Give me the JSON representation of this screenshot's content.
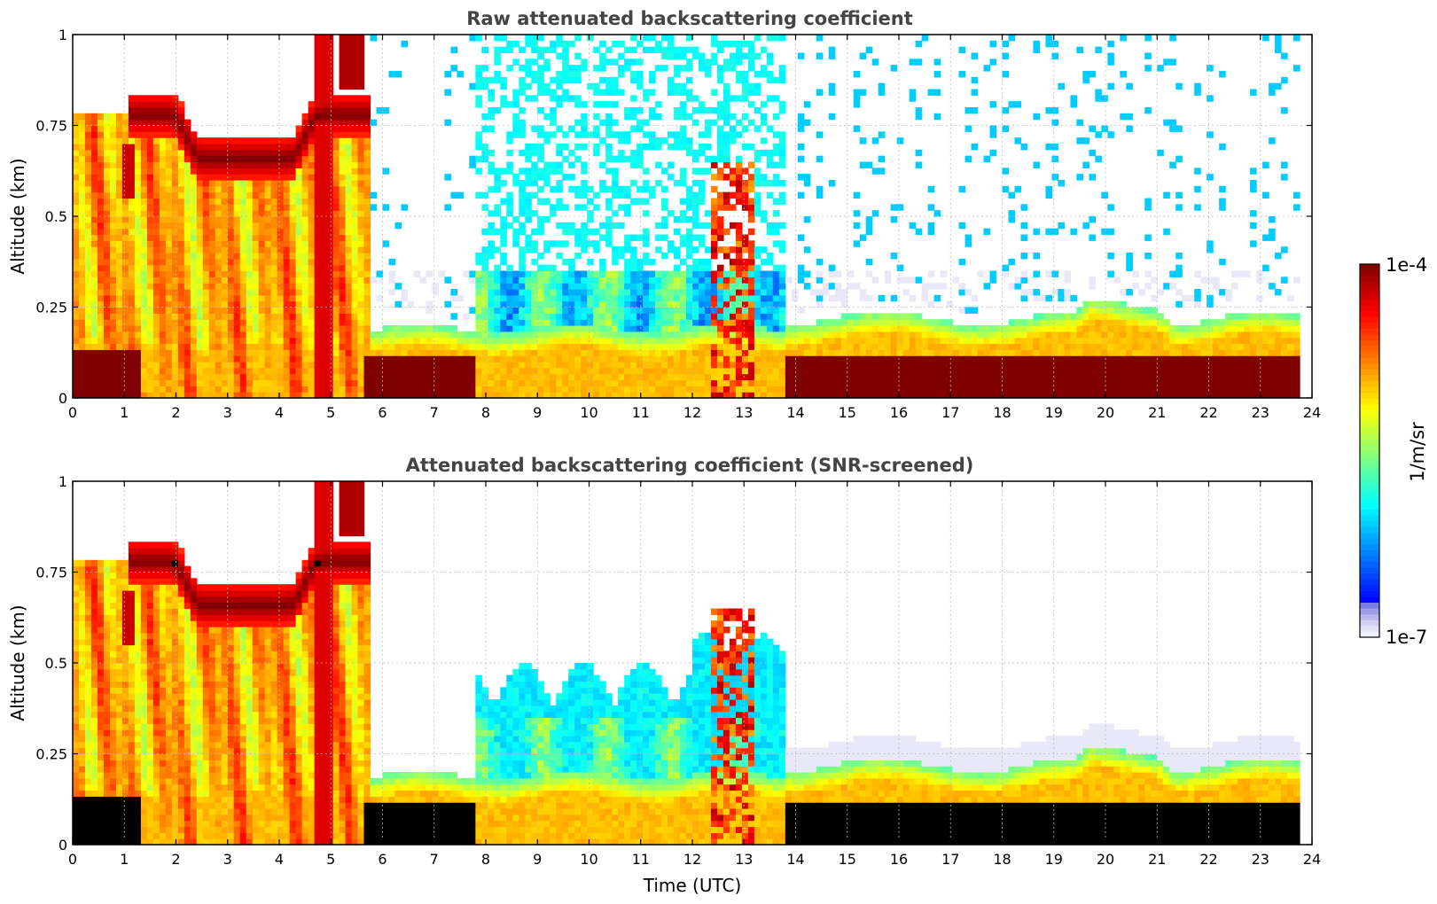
{
  "chart_data": [
    {
      "type": "heatmap",
      "title": "Raw attenuated backscattering coefficient",
      "xlabel": "",
      "ylabel": "Altitude (km)",
      "xlim": [
        0,
        24
      ],
      "ylim": [
        0,
        1
      ],
      "x_ticks": [
        "0",
        "1",
        "2",
        "3",
        "4",
        "5",
        "6",
        "7",
        "8",
        "9",
        "10",
        "11",
        "12",
        "13",
        "14",
        "15",
        "16",
        "17",
        "18",
        "19",
        "20",
        "21",
        "22",
        "23",
        "24"
      ],
      "y_ticks": [
        "0",
        "0.25",
        "0.5",
        "0.75",
        "1"
      ],
      "grid": true,
      "screened": false
    },
    {
      "type": "heatmap",
      "title": "Attenuated backscattering coefficient (SNR-screened)",
      "xlabel": "Time (UTC)",
      "ylabel": "Altitude (km)",
      "xlim": [
        0,
        24
      ],
      "ylim": [
        0,
        1
      ],
      "x_ticks": [
        "0",
        "1",
        "2",
        "3",
        "4",
        "5",
        "6",
        "7",
        "8",
        "9",
        "10",
        "11",
        "12",
        "13",
        "14",
        "15",
        "16",
        "17",
        "18",
        "19",
        "20",
        "21",
        "22",
        "23",
        "24"
      ],
      "y_ticks": [
        "0",
        "0.25",
        "0.5",
        "0.75",
        "1"
      ],
      "grid": true,
      "screened": true
    }
  ],
  "colorbar": {
    "label": "1/m/sr",
    "max_label": "1e-4",
    "min_label": "1e-7",
    "scale": "log",
    "colormap": "jet",
    "low_color": "#e8e8f8",
    "high_color": "#7f0000",
    "screened_high_color": "#000000"
  },
  "colors": {
    "title": "#444444",
    "grid": "#bbbbbb",
    "frame": "#000000"
  }
}
